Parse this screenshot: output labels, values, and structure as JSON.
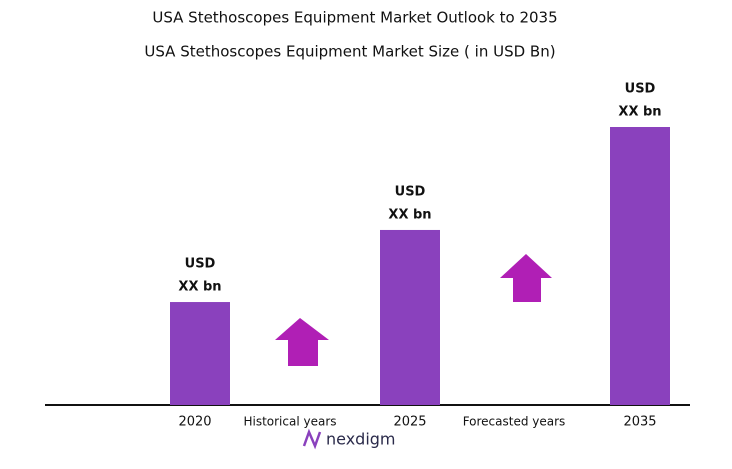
{
  "chart_data": {
    "type": "bar",
    "title": "USA Stethoscopes Equipment Market Outlook to 2035",
    "subtitle": "USA Stethoscopes Equipment  Market Size  ( in USD Bn)",
    "categories": [
      "2020",
      "2025",
      "2035"
    ],
    "values": [
      1.0,
      1.7,
      2.7
    ],
    "value_labels": [
      [
        "USD",
        "XX bn"
      ],
      [
        "USD",
        "XX bn"
      ],
      [
        "USD",
        "XX bn"
      ]
    ],
    "color": "#8a41bd",
    "annotations": [
      "Historical years",
      "Forecasted years"
    ],
    "brand": "nexdigm"
  }
}
